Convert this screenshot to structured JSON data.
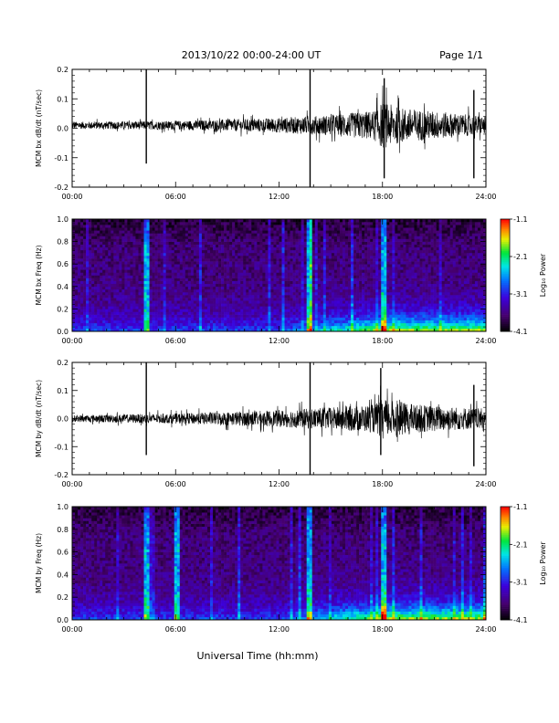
{
  "header": {
    "date_range": "2013/10/22  00:00-24:00 UT",
    "page": "Page 1/1"
  },
  "chart_data": [
    {
      "type": "line",
      "ylabel": "MCM bx dB/dt (nT/sec)",
      "xlim": [
        0,
        24
      ],
      "ylim": [
        -0.2,
        0.2
      ],
      "x_ticks": [
        "00:00",
        "06:00",
        "12:00",
        "18:00",
        "24:00"
      ],
      "y_ticks": [
        "-0.2",
        "-0.1",
        "0.0",
        "0.1",
        "0.2"
      ],
      "baseline": 0.01,
      "noise_envelope": [
        [
          0,
          0.012
        ],
        [
          6,
          0.015
        ],
        [
          12,
          0.025
        ],
        [
          15,
          0.035
        ],
        [
          17.5,
          0.05
        ],
        [
          18,
          0.08
        ],
        [
          19,
          0.06
        ],
        [
          24,
          0.03
        ]
      ],
      "spikes": [
        [
          4.3,
          0.2,
          -0.12
        ],
        [
          13.8,
          0.2,
          -0.2
        ],
        [
          18.1,
          0.17,
          -0.17
        ],
        [
          23.3,
          0.13,
          -0.17
        ]
      ]
    },
    {
      "type": "heatmap",
      "ylabel": "MCM bx Freq (Hz)",
      "xlim": [
        0,
        24
      ],
      "ylim": [
        0,
        1.0
      ],
      "x_ticks": [
        "00:00",
        "06:00",
        "12:00",
        "18:00",
        "24:00"
      ],
      "y_ticks": [
        "0.0",
        "0.2",
        "0.4",
        "0.6",
        "0.8",
        "1.0"
      ],
      "colorbar": {
        "label": "Log₁₀ Power",
        "range": [
          -4.1,
          -1.1
        ],
        "ticks": [
          "-1.1",
          "-2.1",
          "-3.1",
          "-4.1"
        ]
      },
      "bright_times": [
        4.3,
        13.8,
        18.1
      ]
    },
    {
      "type": "line",
      "ylabel": "MCM by dB/dt (nT/sec)",
      "xlim": [
        0,
        24
      ],
      "ylim": [
        -0.2,
        0.2
      ],
      "x_ticks": [
        "00:00",
        "06:00",
        "12:00",
        "18:00",
        "24:00"
      ],
      "y_ticks": [
        "-0.2",
        "-0.1",
        "0.0",
        "0.1",
        "0.2"
      ],
      "baseline": 0.0,
      "noise_envelope": [
        [
          0,
          0.012
        ],
        [
          6,
          0.018
        ],
        [
          12,
          0.03
        ],
        [
          15,
          0.04
        ],
        [
          17.5,
          0.05
        ],
        [
          18,
          0.07
        ],
        [
          20,
          0.05
        ],
        [
          24,
          0.035
        ]
      ],
      "spikes": [
        [
          4.3,
          0.2,
          -0.13
        ],
        [
          13.8,
          0.2,
          -0.2
        ],
        [
          17.9,
          0.18,
          -0.13
        ],
        [
          23.3,
          0.12,
          -0.17
        ]
      ]
    },
    {
      "type": "heatmap",
      "ylabel": "MCM by Freq (Hz)",
      "xlim": [
        0,
        24
      ],
      "ylim": [
        0,
        1.0
      ],
      "x_ticks": [
        "00:00",
        "06:00",
        "12:00",
        "18:00",
        "24:00"
      ],
      "y_ticks": [
        "0.0",
        "0.2",
        "0.4",
        "0.6",
        "0.8",
        "1.0"
      ],
      "colorbar": {
        "label": "Log₁₀ Power",
        "range": [
          -4.1,
          -1.1
        ],
        "ticks": [
          "-1.1",
          "-2.1",
          "-3.1",
          "-4.1"
        ]
      },
      "bright_times": [
        4.3,
        6.1,
        13.8,
        18.1
      ]
    }
  ],
  "footer": {
    "xlabel": "Universal Time (hh:mm)"
  }
}
